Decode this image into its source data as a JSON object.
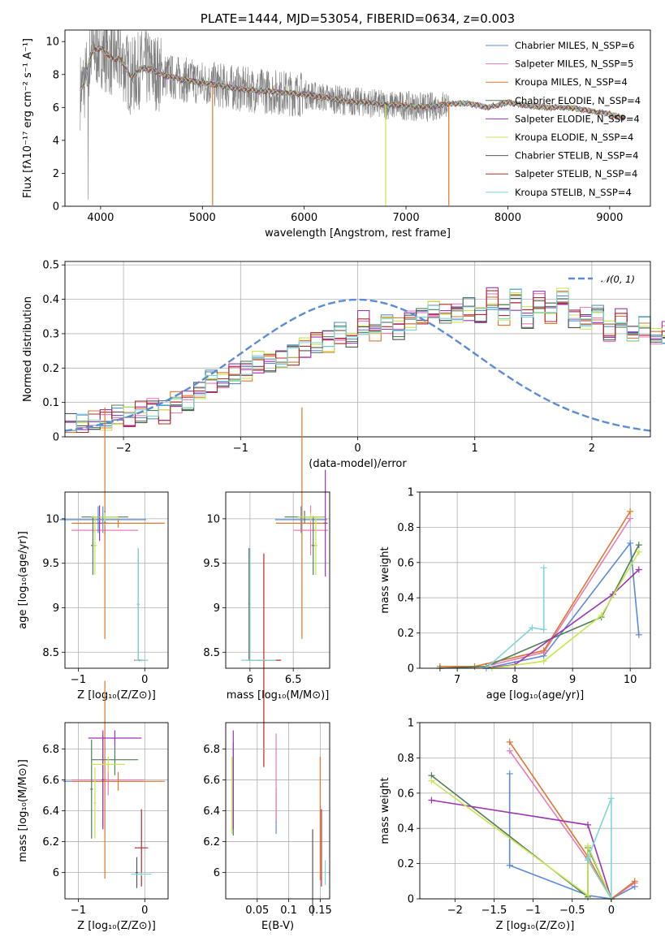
{
  "chart_data": [
    {
      "id": "spectrum",
      "type": "line",
      "title": "PLATE=1444, MJD=53054, FIBERID=0634, z=0.003",
      "xlabel": "wavelength [Angstrom, rest frame]",
      "ylabel": "Flux [fλ10⁻¹⁷ erg cm⁻² s⁻¹ A⁻¹]",
      "xlim": [
        3650,
        9400
      ],
      "ylim": [
        0,
        10.7
      ],
      "xticks": [
        4000,
        5000,
        6000,
        7000,
        8000,
        9000
      ],
      "yticks": [
        0,
        2,
        4,
        6,
        8,
        10
      ],
      "grid": false,
      "legend_position": "top-right",
      "continuum": {
        "x": [
          3800,
          3850,
          3900,
          3950,
          4000,
          4100,
          4200,
          4300,
          4400,
          4500,
          4600,
          4800,
          5000,
          5200,
          5400,
          5600,
          5800,
          6000,
          6200,
          6400,
          6600,
          6800,
          7000,
          7200,
          7400,
          7600,
          7800,
          8000,
          8200,
          8400,
          8600,
          8800,
          9000,
          9100
        ],
        "y": [
          7.0,
          7.6,
          9.2,
          9.5,
          9.6,
          9.0,
          8.9,
          7.8,
          8.4,
          8.3,
          8.0,
          7.7,
          7.5,
          7.3,
          7.1,
          7.0,
          6.9,
          6.8,
          6.6,
          6.4,
          6.3,
          6.15,
          6.1,
          6.0,
          6.2,
          6.25,
          6.0,
          6.3,
          6.1,
          6.0,
          6.0,
          5.8,
          5.6,
          5.4
        ]
      },
      "observed_range": [
        3800,
        7420
      ],
      "series": [
        {
          "name": "Chabrier MILES, N_SSP=6",
          "color": "#5b8bd6"
        },
        {
          "name": "Salpeter MILES, N_SSP=5",
          "color": "#e87bb8"
        },
        {
          "name": "Kroupa MILES, N_SSP=4",
          "color": "#e0762d"
        },
        {
          "name": "Chabrier ELODIE, N_SSP=4",
          "color": "#4f7f5a"
        },
        {
          "name": "Salpeter ELODIE, N_SSP=4",
          "color": "#9c35b0"
        },
        {
          "name": "Kroupa ELODIE, N_SSP=4",
          "color": "#c7e64f"
        },
        {
          "name": "Chabrier STELIB, N_SSP=4",
          "color": "#555555"
        },
        {
          "name": "Salpeter STELIB, N_SSP=4",
          "color": "#b52a2a"
        },
        {
          "name": "Kroupa STELIB, N_SSP=4",
          "color": "#7fd6d6"
        }
      ]
    },
    {
      "id": "residuals",
      "type": "line",
      "xlabel": "(data-model)/error",
      "ylabel": "Normed distribution",
      "xlim": [
        -2.5,
        2.5
      ],
      "ylim": [
        0,
        0.51
      ],
      "xticks": [
        -2,
        -1,
        0,
        1,
        2
      ],
      "yticks": [
        0.0,
        0.1,
        0.2,
        0.3,
        0.4,
        0.5
      ],
      "grid": true,
      "legend_position": "top-right",
      "gaussian_label": "𝒩(0, 1)",
      "bin_width": 0.1,
      "bin_start": -2.5,
      "histogram": [
        0.035,
        0.035,
        0.04,
        0.045,
        0.06,
        0.055,
        0.075,
        0.08,
        0.075,
        0.1,
        0.1,
        0.13,
        0.16,
        0.16,
        0.18,
        0.19,
        0.22,
        0.22,
        0.23,
        0.24,
        0.26,
        0.28,
        0.28,
        0.3,
        0.28,
        0.33,
        0.31,
        0.33,
        0.32,
        0.34,
        0.35,
        0.37,
        0.35,
        0.36,
        0.37,
        0.35,
        0.4,
        0.36,
        0.4,
        0.35,
        0.39,
        0.36,
        0.4,
        0.35,
        0.34,
        0.36,
        0.3,
        0.34,
        0.3,
        0.32,
        0.29,
        0.3,
        0.29,
        0.28,
        0.27,
        0.25,
        0.24,
        0.22,
        0.22,
        0.2,
        0.2,
        0.16,
        0.15,
        0.13,
        0.14,
        0.12,
        0.1,
        0.1,
        0.09,
        0.08,
        0.07,
        0.07,
        0.06,
        0.05,
        0.06,
        0.045,
        0.04,
        0.035,
        0.03,
        0.03
      ]
    },
    {
      "id": "age-vs-Z",
      "type": "scatter",
      "xlabel": "Z [log₁₀(Z/Z⊙)]",
      "ylabel": "age  [log₁₀(age/yr)]",
      "xlim": [
        -1.2,
        0.35
      ],
      "ylim": [
        8.32,
        10.3
      ],
      "xticks": [
        -1,
        0
      ],
      "yticks": [
        8.5,
        9.0,
        9.5,
        10.0
      ],
      "grid": true,
      "errorbars": [
        {
          "c": 0,
          "x": -0.63,
          "y": 9.99,
          "xerr": 0.65,
          "yerr": 0.15
        },
        {
          "c": 1,
          "x": -0.6,
          "y": 9.87,
          "xerr": 0.5,
          "yerr": 0.05
        },
        {
          "c": 2,
          "x": -0.4,
          "y": 9.95,
          "xerr": 0.7,
          "yerr": 0.05
        },
        {
          "c": 2,
          "x": -0.6,
          "y": 9.95,
          "xerr": 0.05,
          "yerr": 1.3
        },
        {
          "c": 3,
          "x": -0.6,
          "y": 10.02,
          "xerr": 0.35,
          "yerr": 0.07
        },
        {
          "c": 3,
          "x": -0.78,
          "y": 9.7,
          "xerr": 0.03,
          "yerr": 0.33
        },
        {
          "c": 4,
          "x": -0.68,
          "y": 9.95,
          "xerr": 0.03,
          "yerr": 0.2
        },
        {
          "c": 5,
          "x": -0.6,
          "y": 10.02,
          "xerr": 0.2,
          "yerr": 0.05
        },
        {
          "c": 5,
          "x": -0.75,
          "y": 9.7,
          "xerr": 0.03,
          "yerr": 0.33
        },
        {
          "c": 6,
          "x": -0.1,
          "y": 9.04,
          "xerr": 0.02,
          "yerr": 0.63
        },
        {
          "c": 7,
          "x": -0.08,
          "y": 8.41,
          "xerr": 0.08,
          "yerr": 0.01
        },
        {
          "c": 8,
          "x": -0.1,
          "y": 9.04,
          "xerr": 0.02,
          "yerr": 0.63
        },
        {
          "c": 8,
          "x": -0.05,
          "y": 8.41,
          "xerr": 0.1,
          "yerr": 0.01
        },
        {
          "c": 0,
          "x": -0.7,
          "y": 9.99,
          "xerr": 0.03,
          "yerr": 0.15
        }
      ]
    },
    {
      "id": "age-vs-mass",
      "type": "scatter",
      "xlabel": "mass [log₁₀(M/M⊙)]",
      "ylabel": "",
      "xlim": [
        5.72,
        6.92
      ],
      "ylim": [
        8.32,
        10.3
      ],
      "xticks": [
        6.0,
        6.5
      ],
      "yticks": [
        8.5,
        9.0,
        9.5,
        10.0
      ],
      "grid": true,
      "errorbars": [
        {
          "c": 0,
          "x": 6.59,
          "y": 9.99,
          "xerr": 0.3,
          "yerr": 0.15
        },
        {
          "c": 1,
          "x": 6.7,
          "y": 9.87,
          "xerr": 0.2,
          "yerr": 0.28
        },
        {
          "c": 2,
          "x": 6.6,
          "y": 9.95,
          "xerr": 0.3,
          "yerr": 1.3
        },
        {
          "c": 3,
          "x": 6.63,
          "y": 10.02,
          "xerr": 0.23,
          "yerr": 0.07
        },
        {
          "c": 3,
          "x": 6.73,
          "y": 9.7,
          "xerr": 0.02,
          "yerr": 0.33
        },
        {
          "c": 4,
          "x": 6.87,
          "y": 9.95,
          "xerr": 0.02,
          "yerr": 0.6
        },
        {
          "c": 5,
          "x": 6.7,
          "y": 10.02,
          "xerr": 0.15,
          "yerr": 0.05
        },
        {
          "c": 5,
          "x": 6.76,
          "y": 9.7,
          "xerr": 0.02,
          "yerr": 0.33
        },
        {
          "c": 6,
          "x": 5.99,
          "y": 9.04,
          "xerr": 0.01,
          "yerr": 0.63
        },
        {
          "c": 7,
          "x": 6.16,
          "y": 8.41,
          "xerr": 0.2,
          "yerr": 1.2
        },
        {
          "c": 8,
          "x": 6.0,
          "y": 9.04,
          "xerr": 0.01,
          "yerr": 0.63
        },
        {
          "c": 8,
          "x": 6.1,
          "y": 8.41,
          "xerr": 0.2,
          "yerr": 0.01
        }
      ]
    },
    {
      "id": "massweight-vs-age",
      "type": "line",
      "xlabel": "age  [log₁₀(age/yr)]",
      "ylabel": "mass weight",
      "xlim": [
        6.35,
        10.35
      ],
      "ylim": [
        0,
        1.0
      ],
      "xticks": [
        7,
        8,
        9,
        10
      ],
      "yticks": [
        0.0,
        0.2,
        0.4,
        0.6,
        0.8,
        1.0
      ],
      "grid": true,
      "series": [
        {
          "c": 0,
          "x": [
            7.5,
            8.5,
            10.0,
            10.15
          ],
          "y": [
            0.0,
            0.07,
            0.71,
            0.19
          ]
        },
        {
          "c": 1,
          "x": [
            7.6,
            8.5,
            10.0
          ],
          "y": [
            0.02,
            0.09,
            0.85
          ]
        },
        {
          "c": 2,
          "x": [
            6.7,
            7.3,
            8.5,
            10.0
          ],
          "y": [
            0.01,
            0.01,
            0.1,
            0.89
          ]
        },
        {
          "c": 3,
          "x": [
            6.7,
            7.5,
            9.5,
            10.15
          ],
          "y": [
            0.0,
            0.01,
            0.29,
            0.7
          ]
        },
        {
          "c": 4,
          "x": [
            7.5,
            8.0,
            9.7,
            10.15
          ],
          "y": [
            0.0,
            0.02,
            0.42,
            0.56
          ]
        },
        {
          "c": 5,
          "x": [
            7.6,
            8.5,
            9.5,
            10.15
          ],
          "y": [
            0.0,
            0.04,
            0.3,
            0.66
          ]
        },
        {
          "c": 8,
          "x": [
            7.5,
            8.3,
            8.5,
            8.5
          ],
          "y": [
            0.0,
            0.23,
            0.22,
            0.57
          ]
        }
      ]
    },
    {
      "id": "mass-vs-Z",
      "type": "scatter",
      "xlabel": "Z [log₁₀(Z/Z⊙)]",
      "ylabel": "mass [log₁₀(M/M⊙)]",
      "xlim": [
        -1.2,
        0.35
      ],
      "ylim": [
        5.83,
        6.97
      ],
      "xticks": [
        -1,
        0
      ],
      "yticks": [
        6.0,
        6.2,
        6.4,
        6.6,
        6.8
      ],
      "grid": true,
      "errorbars": [
        {
          "c": 0,
          "x": -0.63,
          "y": 6.59,
          "xerr": 0.6,
          "yerr": 0.3
        },
        {
          "c": 1,
          "x": -0.55,
          "y": 6.6,
          "xerr": 0.55,
          "yerr": 0.1
        },
        {
          "c": 2,
          "x": -0.4,
          "y": 6.59,
          "xerr": 0.7,
          "yerr": 0.06
        },
        {
          "c": 2,
          "x": -0.6,
          "y": 6.6,
          "xerr": 0.02,
          "yerr": 0.64
        },
        {
          "c": 3,
          "x": -0.45,
          "y": 6.73,
          "xerr": 0.35,
          "yerr": 0.1
        },
        {
          "c": 3,
          "x": -0.8,
          "y": 6.54,
          "xerr": 0.02,
          "yerr": 0.32
        },
        {
          "c": 4,
          "x": -0.45,
          "y": 6.87,
          "xerr": 0.4,
          "yerr": 0.05
        },
        {
          "c": 4,
          "x": -0.63,
          "y": 6.6,
          "xerr": 0.02,
          "yerr": 0.32
        },
        {
          "c": 5,
          "x": -0.55,
          "y": 6.7,
          "xerr": 0.25,
          "yerr": 0.05
        },
        {
          "c": 5,
          "x": -0.75,
          "y": 6.45,
          "xerr": 0.02,
          "yerr": 0.23
        },
        {
          "c": 6,
          "x": -0.12,
          "y": 6.0,
          "xerr": 0.02,
          "yerr": 0.1
        },
        {
          "c": 7,
          "x": -0.05,
          "y": 6.16,
          "xerr": 0.1,
          "yerr": 0.25
        },
        {
          "c": 8,
          "x": -0.05,
          "y": 5.99,
          "xerr": 0.15,
          "yerr": 0.01
        }
      ]
    },
    {
      "id": "mass-vs-ebv",
      "type": "scatter",
      "xlabel": "E(B-V)",
      "ylabel": "",
      "xlim": [
        0.0,
        0.165
      ],
      "ylim": [
        5.83,
        6.97
      ],
      "xticks": [
        0.05,
        0.1,
        0.15
      ],
      "yticks": [
        6.0,
        6.2,
        6.4,
        6.6,
        6.8
      ],
      "grid": true,
      "errorbars": [
        {
          "c": 0,
          "x": 0.08,
          "y": 6.4,
          "xerr": 0.0,
          "yerr": 0.15
        },
        {
          "c": 1,
          "x": 0.08,
          "y": 6.62,
          "xerr": 0.0,
          "yerr": 0.28
        },
        {
          "c": 2,
          "x": 0.15,
          "y": 6.35,
          "xerr": 0.0,
          "yerr": 0.4
        },
        {
          "c": 3,
          "x": 0.012,
          "y": 6.54,
          "xerr": 0.0,
          "yerr": 0.3
        },
        {
          "c": 4,
          "x": 0.012,
          "y": 6.6,
          "xerr": 0.0,
          "yerr": 0.32
        },
        {
          "c": 5,
          "x": 0.01,
          "y": 6.5,
          "xerr": 0.0,
          "yerr": 0.25
        },
        {
          "c": 6,
          "x": 0.138,
          "y": 6.0,
          "xerr": 0.0,
          "yerr": 0.28
        },
        {
          "c": 7,
          "x": 0.152,
          "y": 6.16,
          "xerr": 0.0,
          "yerr": 0.25
        },
        {
          "c": 8,
          "x": 0.158,
          "y": 6.0,
          "xerr": 0.0,
          "yerr": 0.08
        }
      ]
    },
    {
      "id": "massweight-vs-Z",
      "type": "line",
      "xlabel": "Z [log₁₀(Z/Z⊙)]",
      "ylabel": "mass weight",
      "xlim": [
        -2.45,
        0.5
      ],
      "ylim": [
        0,
        1.0
      ],
      "xticks": [
        -2.0,
        -1.5,
        -1.0,
        -0.5,
        0.0
      ],
      "yticks": [
        0.0,
        0.2,
        0.4,
        0.6,
        0.8,
        1.0
      ],
      "grid": true,
      "series": [
        {
          "c": 0,
          "x": [
            -1.3,
            -1.3,
            -0.3,
            0.0,
            0.3
          ],
          "y": [
            0.71,
            0.19,
            0.02,
            0.0,
            0.07
          ]
        },
        {
          "c": 1,
          "x": [
            -1.3,
            -0.3,
            0.0,
            0.3
          ],
          "y": [
            0.84,
            0.22,
            0.0,
            0.09
          ]
        },
        {
          "c": 2,
          "x": [
            -1.3,
            -0.3,
            0.0,
            0.3
          ],
          "y": [
            0.89,
            0.24,
            0.0,
            0.1
          ]
        },
        {
          "c": 3,
          "x": [
            -2.3,
            -0.3,
            -0.3,
            0.0
          ],
          "y": [
            0.7,
            0.01,
            0.29,
            0.0
          ]
        },
        {
          "c": 4,
          "x": [
            -2.3,
            -0.3,
            0.0
          ],
          "y": [
            0.56,
            0.42,
            0.0
          ]
        },
        {
          "c": 5,
          "x": [
            -2.3,
            -0.3,
            -0.3,
            0.0
          ],
          "y": [
            0.67,
            0.02,
            0.3,
            0.0
          ]
        },
        {
          "c": 8,
          "x": [
            -0.3,
            0.0,
            0.0,
            -0.3
          ],
          "y": [
            0.23,
            0.57,
            0.0,
            0.22
          ]
        }
      ]
    }
  ]
}
